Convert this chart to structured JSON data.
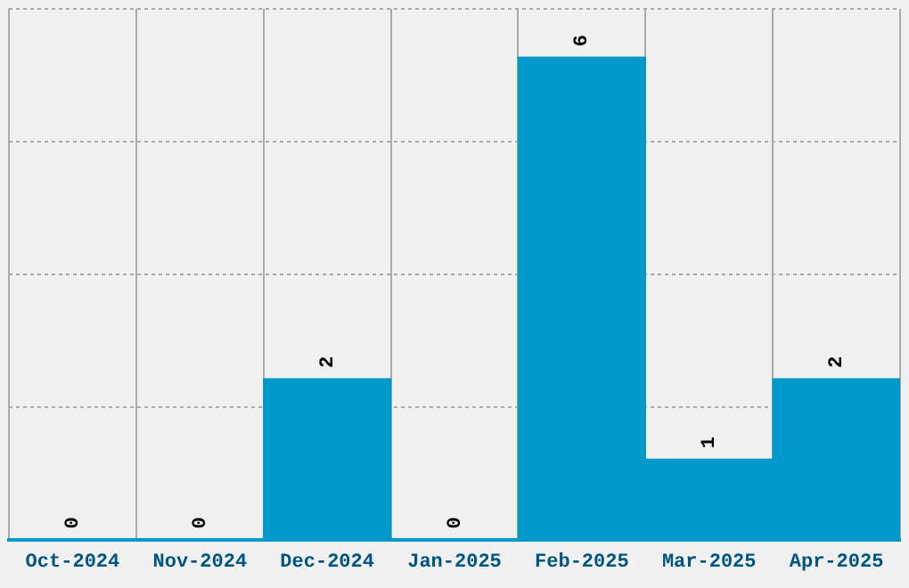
{
  "chart_data": {
    "type": "bar",
    "categories": [
      "Oct-2024",
      "Nov-2024",
      "Dec-2024",
      "Jan-2025",
      "Feb-2025",
      "Mar-2025",
      "Apr-2025"
    ],
    "values": [
      0,
      0,
      2,
      0,
      6,
      1,
      2
    ],
    "color": "#0099cc",
    "ylim": [
      0,
      6.6
    ],
    "yticks": [
      {
        "value": 0,
        "label": null
      },
      {
        "value": 1.65,
        "label": null
      },
      {
        "value": 3.3,
        "label": null
      },
      {
        "value": 4.95,
        "label": null
      },
      {
        "value": 6.6,
        "label": null
      }
    ],
    "tick_labels": "x",
    "grid": true,
    "data_labels": true
  }
}
